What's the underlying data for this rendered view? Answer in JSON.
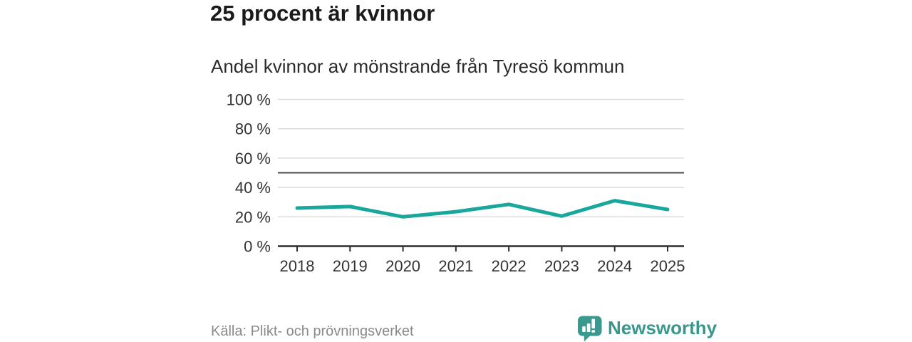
{
  "header": {
    "title": "25 procent är kvinnor",
    "subtitle": "Andel kvinnor av mönstrande från Tyresö kommun"
  },
  "chart_data": {
    "type": "line",
    "title": "25 procent är kvinnor",
    "subtitle": "Andel kvinnor av mönstrande från Tyresö kommun",
    "x": [
      "2018",
      "2019",
      "2020",
      "2021",
      "2022",
      "2023",
      "2024",
      "2025"
    ],
    "series": [
      {
        "name": "Andel kvinnor av mönstrande",
        "values": [
          26,
          27,
          20,
          23.5,
          28.5,
          20.5,
          31,
          25
        ]
      }
    ],
    "unit": "%",
    "ylim": [
      0,
      100
    ],
    "yticks": [
      0,
      20,
      40,
      60,
      80,
      100
    ],
    "ytick_labels": [
      "0 %",
      "20 %",
      "40 %",
      "60 %",
      "80 %",
      "100 %"
    ],
    "reference_line": 50,
    "grid": true,
    "legend_position": "none",
    "colors": {
      "line": "#1aa79b",
      "reference_line": "#4a4a4a",
      "gridline": "#dcdcdc",
      "axis": "#2d2d2d",
      "tick_text": "#333333"
    }
  },
  "footer": {
    "source": "Källa: Plikt- och prövningsverket",
    "brand": "Newsworthy",
    "brand_color": "#3a978e"
  }
}
